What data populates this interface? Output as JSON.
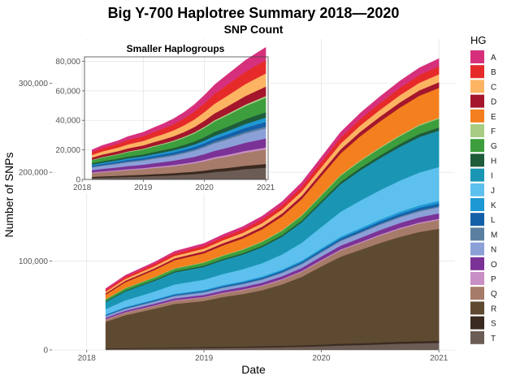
{
  "chart_data": {
    "type": "area",
    "stacked": true,
    "title": "Big Y-700 Haplotree Summary 2018—2020",
    "subtitle": "SNP Count",
    "xlabel": "Date",
    "ylabel": "Number of SNPs",
    "legend_title": "HG",
    "legend_placement": "right",
    "grid": true,
    "x": [
      "2018-03-01",
      "2018-05-01",
      "2018-08-01",
      "2018-10-01",
      "2019-01-01",
      "2019-03-01",
      "2019-05-01",
      "2019-07-01",
      "2019-09-01",
      "2019-11-01",
      "2020-01-01",
      "2020-03-01",
      "2020-05-01",
      "2020-07-01",
      "2020-09-01",
      "2020-11-01",
      "2021-01-01"
    ],
    "x_ticks": [
      "2018",
      "2019",
      "2020",
      "2021"
    ],
    "y_ticks": [
      "0",
      "100,000",
      "200,000",
      "300,000"
    ],
    "ylim": [
      0,
      350000
    ],
    "series": [
      {
        "name": "T",
        "color": "#6b5d55",
        "values": [
          1000,
          1200,
          1500,
          1700,
          2000,
          2300,
          2500,
          2800,
          3200,
          3600,
          4200,
          5000,
          5500,
          6200,
          7000,
          7500,
          8000
        ]
      },
      {
        "name": "S",
        "color": "#3a2a1f",
        "values": [
          800,
          900,
          1000,
          1100,
          1200,
          1300,
          1400,
          1500,
          1600,
          1700,
          1800,
          2000,
          2100,
          2200,
          2300,
          2400,
          2500
        ]
      },
      {
        "name": "R",
        "color": "#5e4a31",
        "values": [
          30000,
          37000,
          44000,
          49000,
          52000,
          56000,
          59000,
          63000,
          69000,
          77000,
          88000,
          98000,
          105000,
          112000,
          118000,
          123000,
          126000
        ]
      },
      {
        "name": "Q",
        "color": "#a67b69",
        "values": [
          2500,
          2800,
          3200,
          3500,
          3800,
          4100,
          4400,
          4700,
          5100,
          5600,
          6300,
          7000,
          7600,
          8200,
          8800,
          9300,
          9800
        ]
      },
      {
        "name": "P",
        "color": "#c88fc4",
        "values": [
          500,
          550,
          600,
          650,
          700,
          750,
          800,
          850,
          900,
          950,
          1000,
          1100,
          1150,
          1200,
          1250,
          1300,
          1350
        ]
      },
      {
        "name": "O",
        "color": "#7b3296",
        "values": [
          1500,
          1700,
          1900,
          2100,
          2300,
          2500,
          2700,
          2900,
          3200,
          3500,
          3900,
          4300,
          4700,
          5100,
          5500,
          5800,
          6100
        ]
      },
      {
        "name": "N",
        "color": "#8ca0d8",
        "values": [
          1800,
          2000,
          2300,
          2500,
          2700,
          2900,
          3100,
          3300,
          3600,
          4000,
          4500,
          5000,
          5400,
          5800,
          6200,
          6500,
          6800
        ]
      },
      {
        "name": "M",
        "color": "#5b7fa0",
        "values": [
          500,
          550,
          600,
          650,
          700,
          750,
          800,
          850,
          900,
          950,
          1000,
          1100,
          1150,
          1200,
          1250,
          1300,
          1350
        ]
      },
      {
        "name": "L",
        "color": "#1460a8",
        "values": [
          800,
          900,
          1000,
          1100,
          1200,
          1300,
          1400,
          1500,
          1600,
          1750,
          1900,
          2100,
          2300,
          2500,
          2700,
          2900,
          3100
        ]
      },
      {
        "name": "K",
        "color": "#1e98d4",
        "values": [
          600,
          700,
          800,
          900,
          1000,
          1100,
          1200,
          1300,
          1400,
          1550,
          1700,
          1900,
          2100,
          2300,
          2500,
          2700,
          2900
        ]
      },
      {
        "name": "J",
        "color": "#5dc0ee",
        "values": [
          6000,
          7500,
          9000,
          10500,
          11500,
          12500,
          13500,
          15000,
          17000,
          20000,
          24000,
          28000,
          31000,
          33000,
          35000,
          37000,
          38000
        ]
      },
      {
        "name": "I",
        "color": "#1a96b4",
        "values": [
          8000,
          10000,
          12000,
          13500,
          14500,
          15500,
          16500,
          18000,
          20000,
          23000,
          27000,
          31000,
          34000,
          36000,
          38000,
          40000,
          41000
        ]
      },
      {
        "name": "H",
        "color": "#1e5c3a",
        "values": [
          1000,
          1100,
          1200,
          1300,
          1400,
          1500,
          1600,
          1700,
          1900,
          2100,
          2400,
          2700,
          2900,
          3100,
          3300,
          3500,
          3600
        ]
      },
      {
        "name": "G",
        "color": "#3c9e3c",
        "values": [
          2000,
          2400,
          2700,
          3000,
          3300,
          3600,
          3900,
          4300,
          4800,
          5400,
          6200,
          7000,
          7600,
          8200,
          8800,
          9300,
          9800
        ]
      },
      {
        "name": "F",
        "color": "#a8cc84",
        "values": [
          300,
          350,
          400,
          450,
          500,
          550,
          600,
          650,
          700,
          750,
          800,
          900,
          950,
          1000,
          1050,
          1100,
          1150
        ]
      },
      {
        "name": "E",
        "color": "#f47f1e",
        "values": [
          5000,
          6500,
          8000,
          9000,
          10000,
          11000,
          12000,
          13500,
          15500,
          18000,
          21000,
          24000,
          27000,
          29000,
          31000,
          32500,
          33500
        ]
      },
      {
        "name": "D",
        "color": "#a4162c",
        "values": [
          1500,
          1700,
          1900,
          2100,
          2300,
          2500,
          2700,
          2900,
          3200,
          3600,
          4100,
          4600,
          5000,
          5400,
          5800,
          6100,
          6400
        ]
      },
      {
        "name": "C",
        "color": "#fdb462",
        "values": [
          1800,
          2100,
          2400,
          2700,
          3000,
          3300,
          3600,
          4000,
          4500,
          5100,
          5800,
          6500,
          7100,
          7600,
          8100,
          8500,
          8900
        ]
      },
      {
        "name": "B",
        "color": "#e62a2a",
        "values": [
          2000,
          2300,
          2600,
          2900,
          3200,
          3500,
          3800,
          4200,
          4700,
          5300,
          6000,
          6700,
          7300,
          7800,
          8300,
          8700,
          9100
        ]
      },
      {
        "name": "A",
        "color": "#d6307c",
        "values": [
          1500,
          1800,
          2100,
          2400,
          2700,
          3000,
          3300,
          3700,
          4200,
          4800,
          5500,
          6200,
          6800,
          7300,
          7800,
          8200,
          8600
        ]
      }
    ],
    "inset": {
      "title": "Smaller Haplogroups",
      "x_ticks": [
        "2018",
        "2019",
        "2020",
        "2021"
      ],
      "y_ticks": [
        "0",
        "20,000",
        "40,000",
        "60,000",
        "80,000"
      ],
      "ylim": [
        0,
        83000
      ],
      "excluded_series": [
        "R",
        "J",
        "I",
        "E"
      ]
    }
  }
}
